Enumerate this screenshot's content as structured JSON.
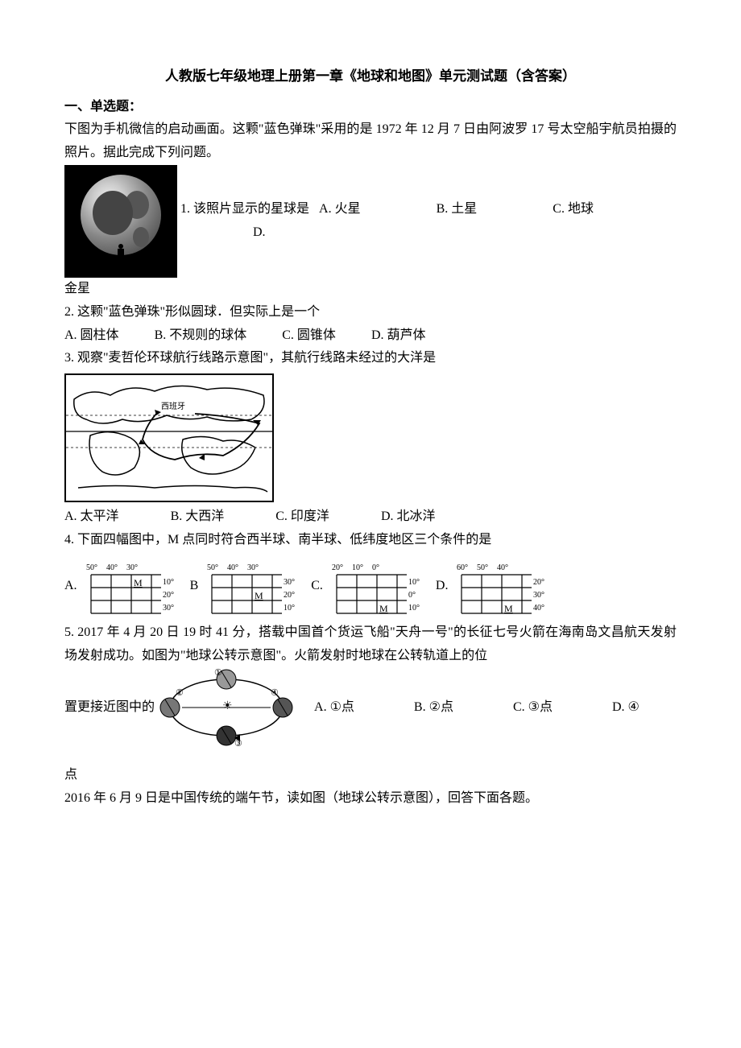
{
  "title": "人教版七年级地理上册第一章《地球和地图》单元测试题（含答案）",
  "section1": "一、单选题：",
  "intro1": "下图为手机微信的启动画面。这颗\"蓝色弹珠\"采用的是 1972 年 12 月 7 日由阿波罗 17 号太空船宇航员拍摄的照片。据此完成下列问题。",
  "q1": {
    "text": "1. 该照片显示的星球是",
    "optA": "A. 火星",
    "optB": "B. 土星",
    "optC": "C. 地球",
    "optD": "D.",
    "optD2": "金星"
  },
  "q2": {
    "text": "2. 这颗\"蓝色弹珠\"形似圆球．但实际上是一个",
    "optA": "A. 圆柱体",
    "optB": "B. 不规则的球体",
    "optC": "C. 圆锥体",
    "optD": "D. 葫芦体"
  },
  "q3": {
    "text": "3. 观察\"麦哲伦环球航行线路示意图\"，其航行线路未经过的大洋是",
    "optA": "A. 太平洋",
    "optB": "B. 大西洋",
    "optC": "C. 印度洋",
    "optD": "D. 北冰洋",
    "map_label": "西班牙"
  },
  "q4": {
    "text": "4. 下面四幅图中，M 点同时符合西半球、南半球、低纬度地区三个条件的是",
    "diagrams": [
      {
        "label": "A.",
        "top": [
          "50°",
          "40°",
          "30°"
        ],
        "right": [
          "10°",
          "20°",
          "30°"
        ],
        "mrow": 0
      },
      {
        "label": "B",
        "top": [
          "50°",
          "40°",
          "30°"
        ],
        "right": [
          "30°",
          "20°",
          "10°"
        ],
        "mrow": 1
      },
      {
        "label": "C.",
        "top": [
          "20°",
          "10°",
          "0°"
        ],
        "right": [
          "10°",
          "0°",
          "10°"
        ],
        "mrow": 2
      },
      {
        "label": "D.",
        "top": [
          "60°",
          "50°",
          "40°"
        ],
        "right": [
          "20°",
          "30°",
          "40°"
        ],
        "mrow": 2
      }
    ]
  },
  "q5": {
    "text_before": "5. 2017 年 4 月 20 日 19 时 41 分，搭载中国首个货运飞船\"天舟一号\"的长征七号火箭在海南岛文昌航天发射场发射成功。如图为\"地球公转示意图\"。火箭发射时地球在公转轨道上的位",
    "text_inline": "置更接近图中的",
    "optA": "A. ①点",
    "optB": "B. ②点",
    "optC": "C. ③点",
    "optD": "D. ④",
    "text_after": "点",
    "orbit_labels": [
      "①",
      "②",
      "③",
      "④"
    ]
  },
  "q6_intro": "2016 年 6 月 9 日是中国传统的端午节，读如图（地球公转示意图），回答下面各题。",
  "colors": {
    "text": "#000000",
    "background": "#ffffff",
    "line": "#000000"
  },
  "fonts": {
    "body_size": 16,
    "title_size": 17,
    "diagram_label_size": 10
  }
}
